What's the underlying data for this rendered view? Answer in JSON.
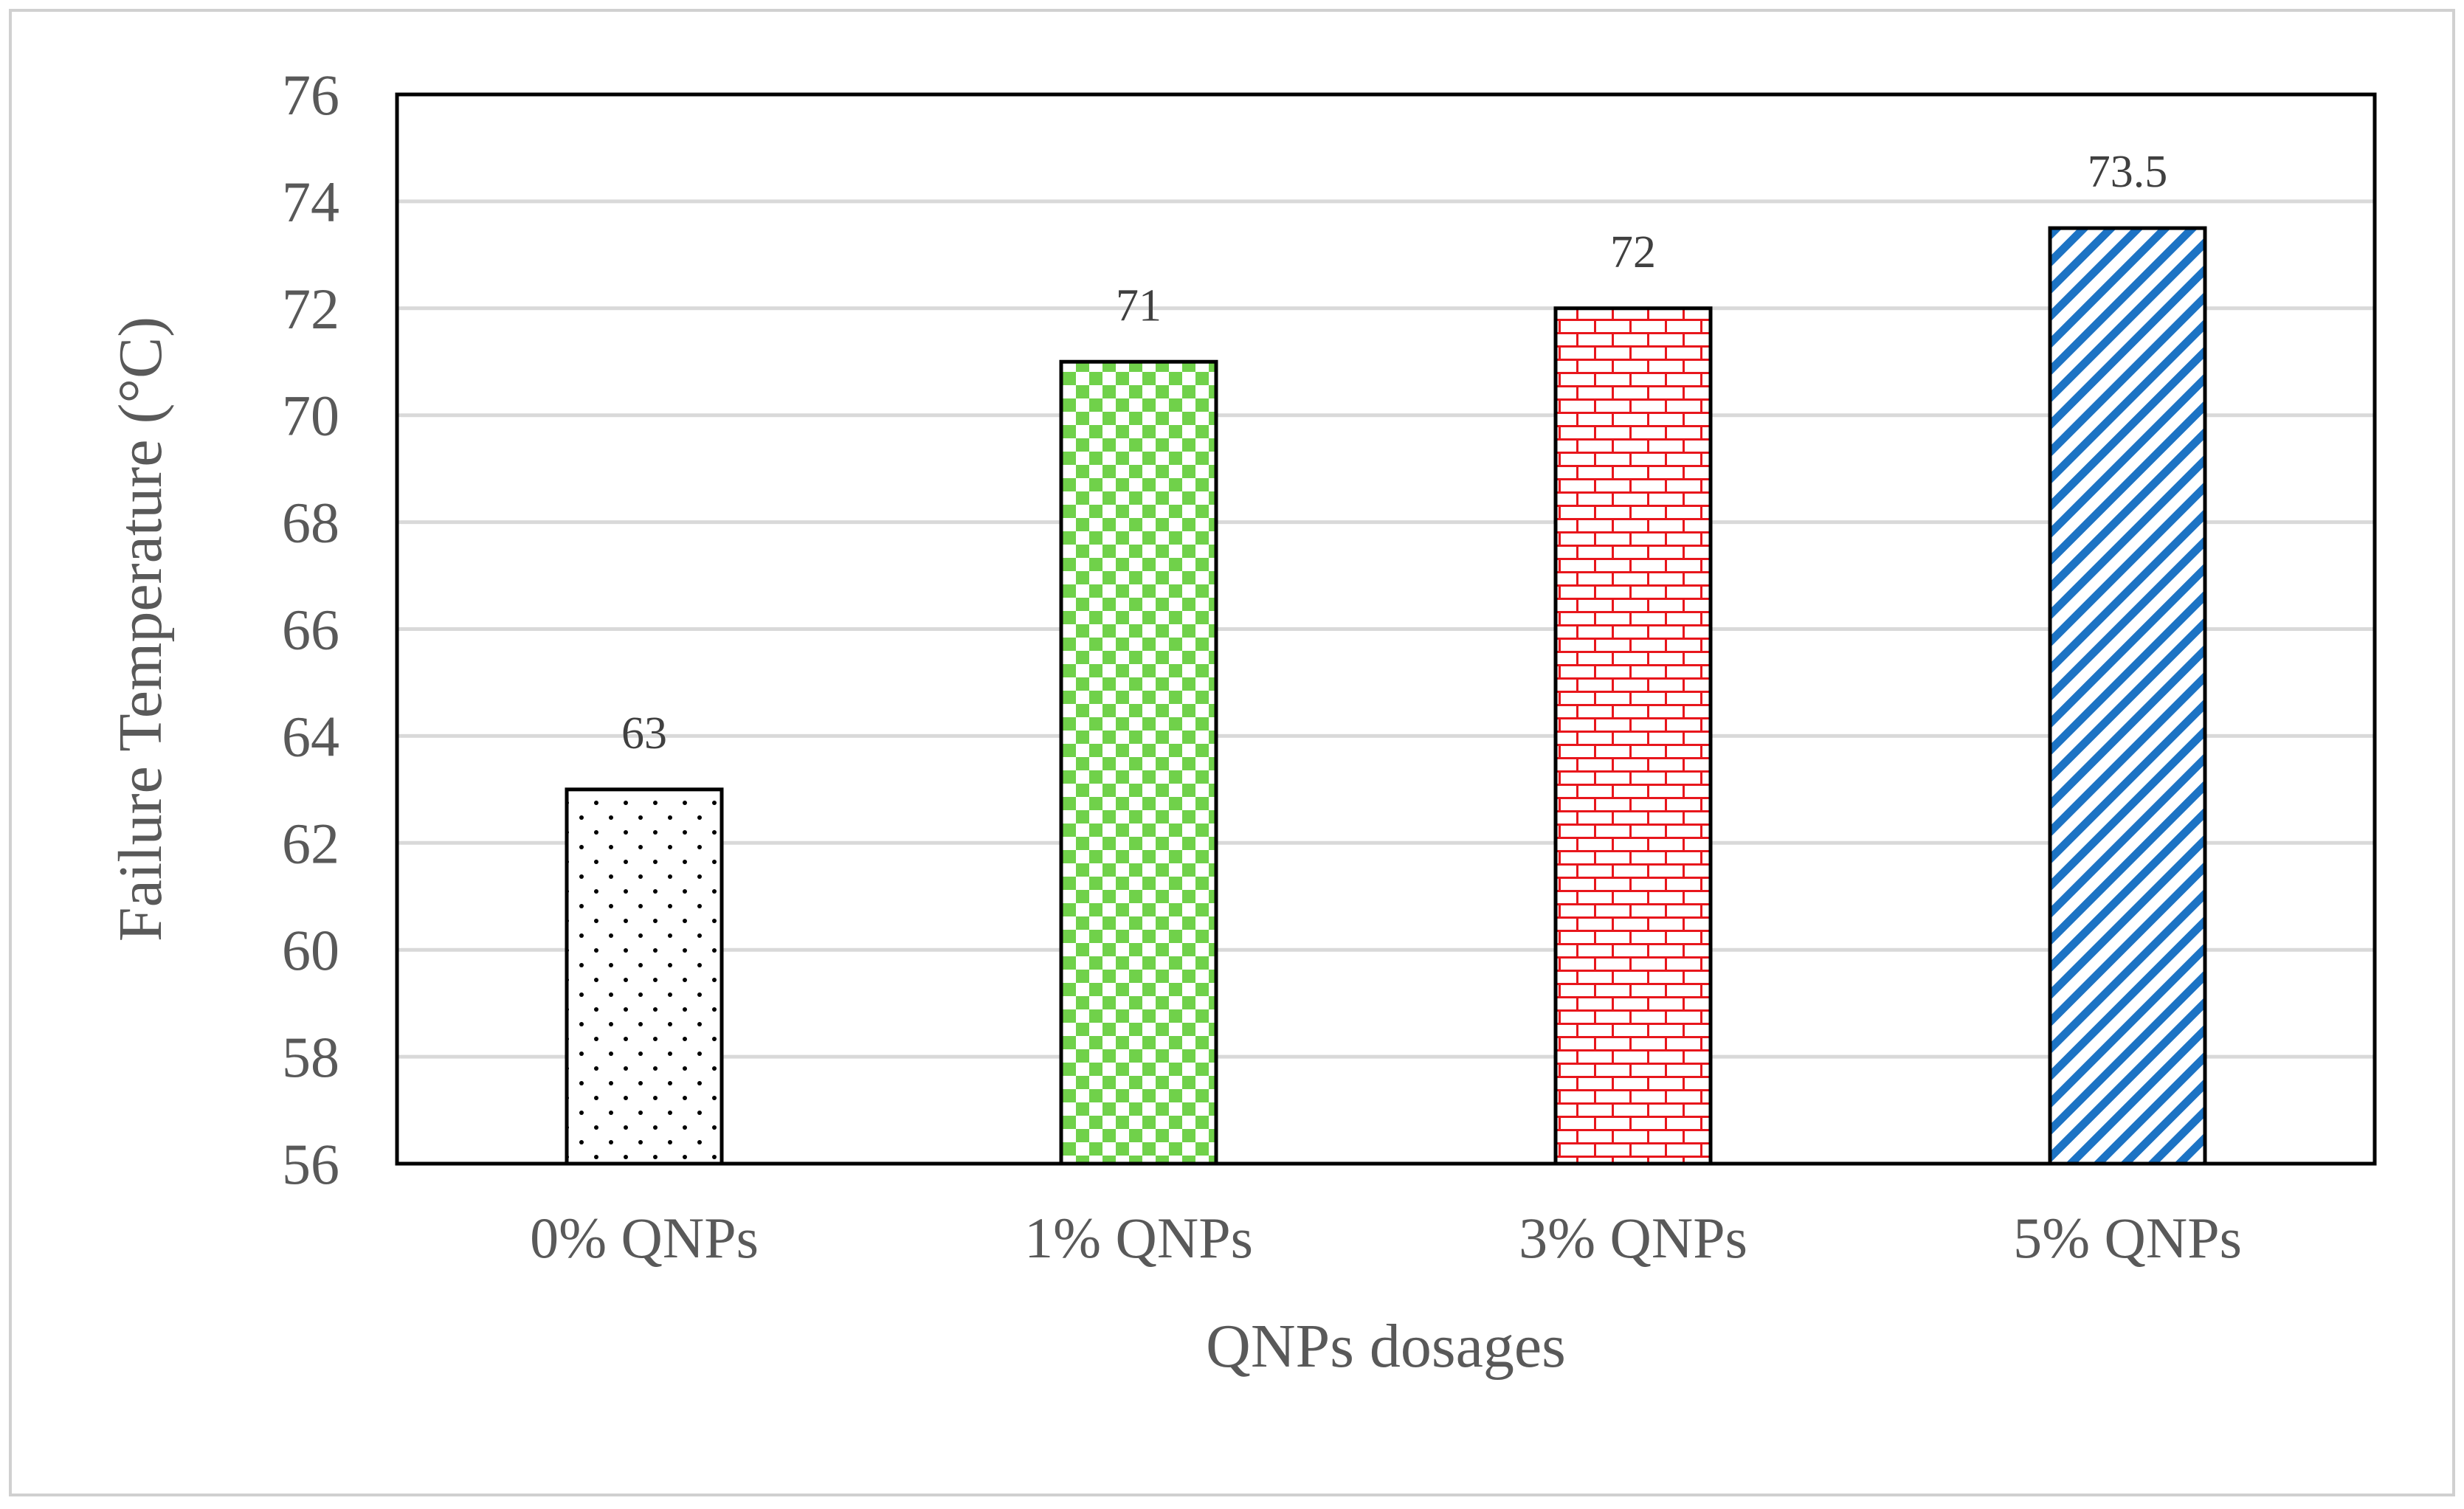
{
  "chart_data": {
    "type": "bar",
    "title": "",
    "xlabel": "QNPs dosages",
    "ylabel": "Failure Temperature (°C)",
    "categories": [
      "0% QNPs",
      "1% QNPs",
      "3% QNPs",
      "5% QNPs"
    ],
    "series": [
      {
        "values": [
          63,
          71,
          72,
          73.5
        ],
        "data_labels": [
          "63",
          "71",
          "72",
          "73.5"
        ]
      }
    ],
    "ylim": [
      56,
      76
    ],
    "yticks": [
      56,
      58,
      60,
      62,
      64,
      66,
      68,
      70,
      72,
      74,
      76
    ],
    "grid": true,
    "legend": "none",
    "bar_fills": [
      {
        "pattern": "dots",
        "color": "#000000"
      },
      {
        "pattern": "checkerboard",
        "color": "#70D14A"
      },
      {
        "pattern": "brick",
        "color": "#E8161C"
      },
      {
        "pattern": "diagonal-stripes",
        "color": "#1C73C4"
      }
    ],
    "colors": {
      "gridline": "#D9D9D9",
      "frame": "#000000",
      "outer_border": "#D0D0D0",
      "text": "#595959"
    }
  }
}
